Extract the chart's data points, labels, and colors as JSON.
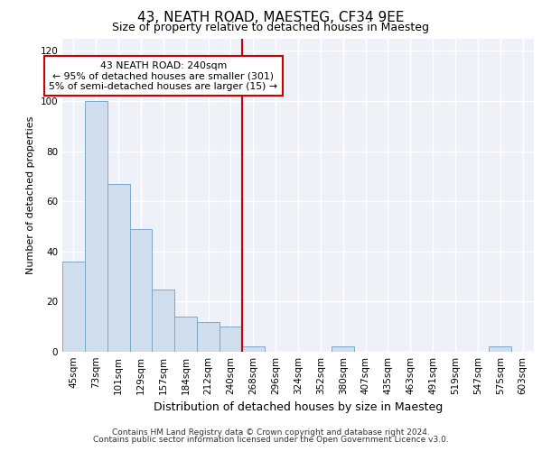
{
  "title": "43, NEATH ROAD, MAESTEG, CF34 9EE",
  "subtitle": "Size of property relative to detached houses in Maesteg",
  "xlabel": "Distribution of detached houses by size in Maesteg",
  "ylabel": "Number of detached properties",
  "categories": [
    "45sqm",
    "73sqm",
    "101sqm",
    "129sqm",
    "157sqm",
    "184sqm",
    "212sqm",
    "240sqm",
    "268sqm",
    "296sqm",
    "324sqm",
    "352sqm",
    "380sqm",
    "407sqm",
    "435sqm",
    "463sqm",
    "491sqm",
    "519sqm",
    "547sqm",
    "575sqm",
    "603sqm"
  ],
  "values": [
    36,
    100,
    67,
    49,
    25,
    14,
    12,
    10,
    2,
    0,
    0,
    0,
    2,
    0,
    0,
    0,
    0,
    0,
    0,
    2,
    0
  ],
  "bar_color": "#cfdded",
  "bar_edge_color": "#7aaac8",
  "vline_x_index": 7.5,
  "vline_color": "#cc0000",
  "annotation_box_text": "43 NEATH ROAD: 240sqm\n← 95% of detached houses are smaller (301)\n5% of semi-detached houses are larger (15) →",
  "annotation_box_edge_color": "#cc0000",
  "ylim": [
    0,
    125
  ],
  "yticks": [
    0,
    20,
    40,
    60,
    80,
    100,
    120
  ],
  "background_color": "#eef2f8",
  "grid_color": "#ffffff",
  "footer_line1": "Contains HM Land Registry data © Crown copyright and database right 2024.",
  "footer_line2": "Contains public sector information licensed under the Open Government Licence v3.0.",
  "title_fontsize": 11,
  "subtitle_fontsize": 9,
  "ylabel_fontsize": 8,
  "xlabel_fontsize": 9,
  "tick_fontsize": 7.5,
  "footer_fontsize": 6.5
}
